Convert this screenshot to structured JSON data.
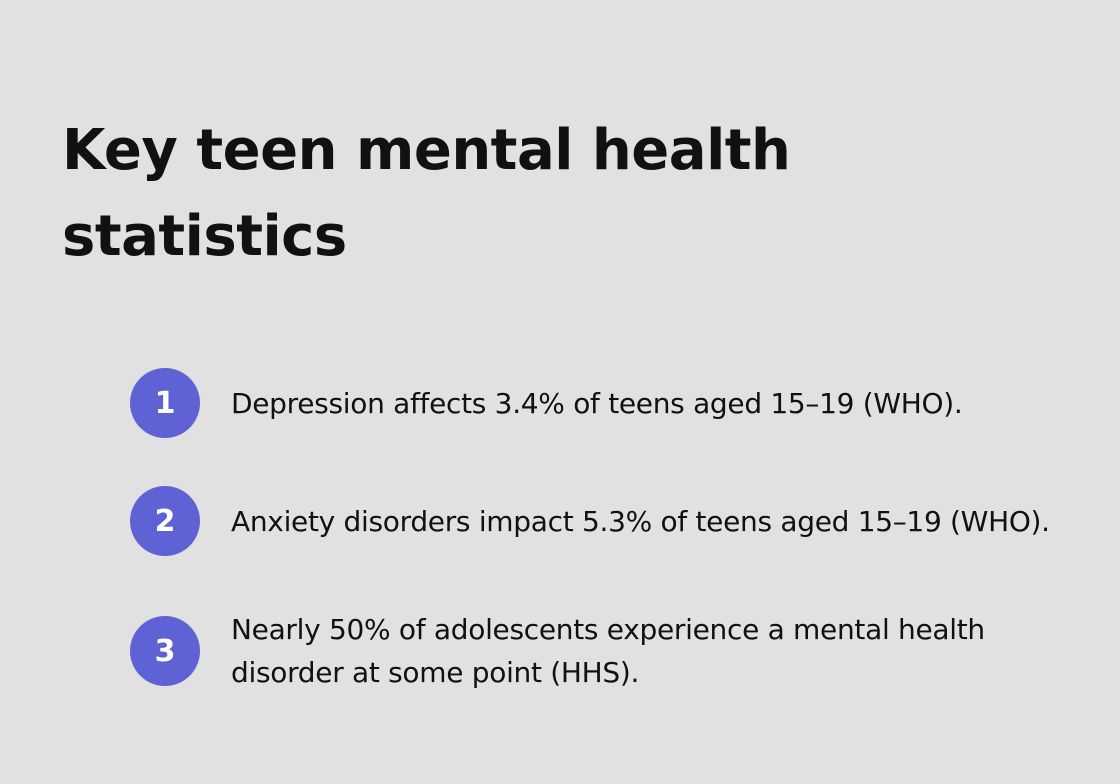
{
  "header": {
    "title": "Key teen mental health statistics"
  },
  "items": [
    {
      "number": "1",
      "text": "Depression affects 3.4% of teens aged 15–19 (WHO)."
    },
    {
      "number": "2",
      "text": "Anxiety disorders impact 5.3% of teens aged 15–19 (WHO)."
    },
    {
      "number": "3",
      "text": "Nearly 50% of adolescents experience a mental health disorder at some point (HHS)."
    }
  ]
}
